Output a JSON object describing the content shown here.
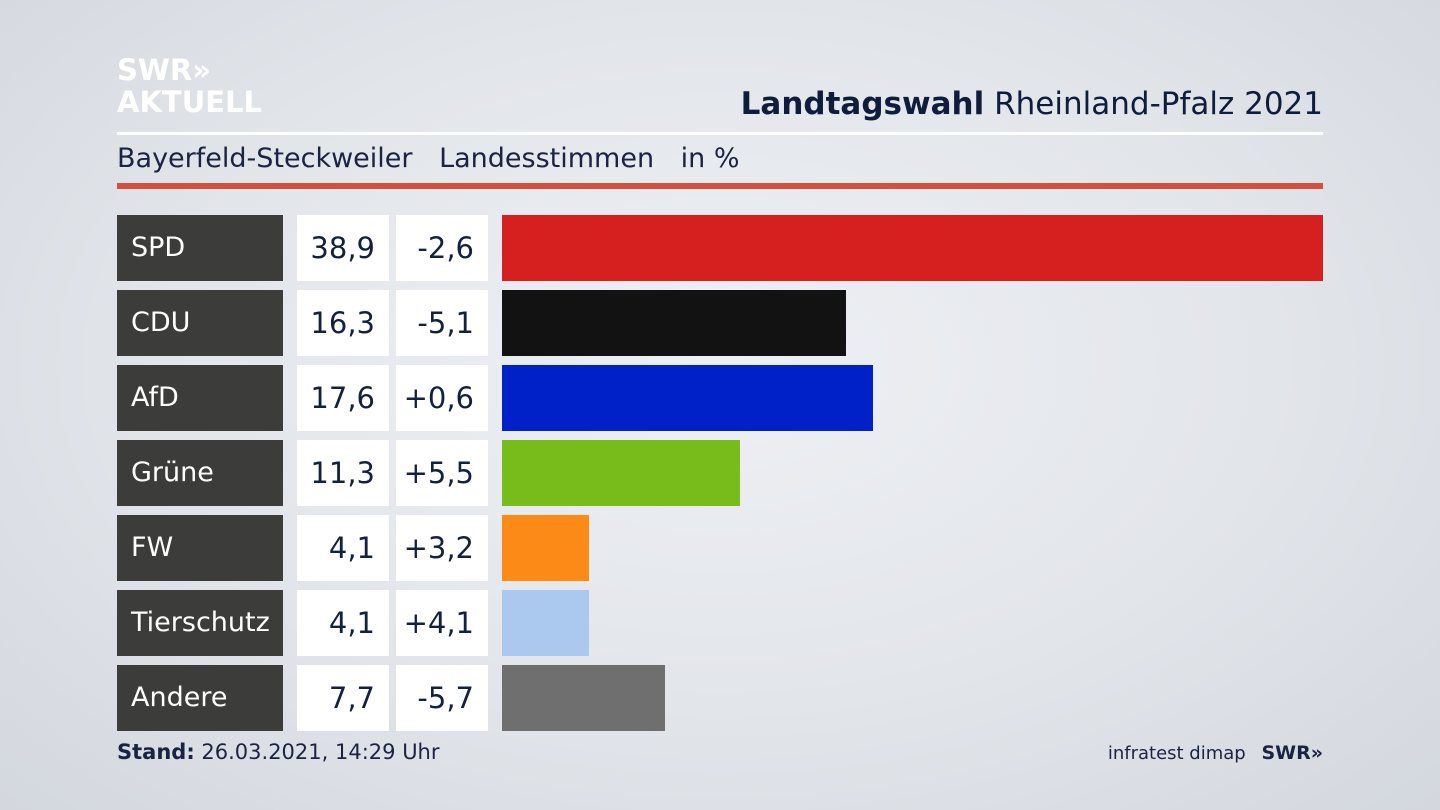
{
  "logo": {
    "line1": "SWR»",
    "line2": "AKTUELL"
  },
  "header": {
    "title_bold": "Landtagswahl",
    "title_rest": "Rheinland-Pfalz 2021"
  },
  "subheader": {
    "location": "Bayerfeld-Steckweiler",
    "vote_type": "Landesstimmen",
    "unit": "in %"
  },
  "chart_data": {
    "type": "bar",
    "orientation": "horizontal",
    "categories": [
      "SPD",
      "CDU",
      "AfD",
      "Grüne",
      "FW",
      "Tierschutz",
      "Andere"
    ],
    "values": [
      38.9,
      16.3,
      17.6,
      11.3,
      4.1,
      4.1,
      7.7
    ],
    "value_labels": [
      "38,9",
      "16,3",
      "17,6",
      "11,3",
      "4,1",
      "4,1",
      "7,7"
    ],
    "diffs": [
      -2.6,
      -5.1,
      0.6,
      5.5,
      3.2,
      4.1,
      -5.7
    ],
    "diff_labels": [
      "-2,6",
      "-5,1",
      "+0,6",
      "+5,5",
      "+3,2",
      "+4,1",
      "-5,7"
    ],
    "colors": [
      "#d62020",
      "#121212",
      "#0021c8",
      "#78bc1b",
      "#fb8a17",
      "#abc8ef",
      "#6f6f70"
    ],
    "xlim": [
      0,
      38.9
    ]
  },
  "footer": {
    "stand_label": "Stand:",
    "stand_value": "26.03.2021, 14:29 Uhr",
    "source": "infratest dimap",
    "brand": "SWR»"
  }
}
